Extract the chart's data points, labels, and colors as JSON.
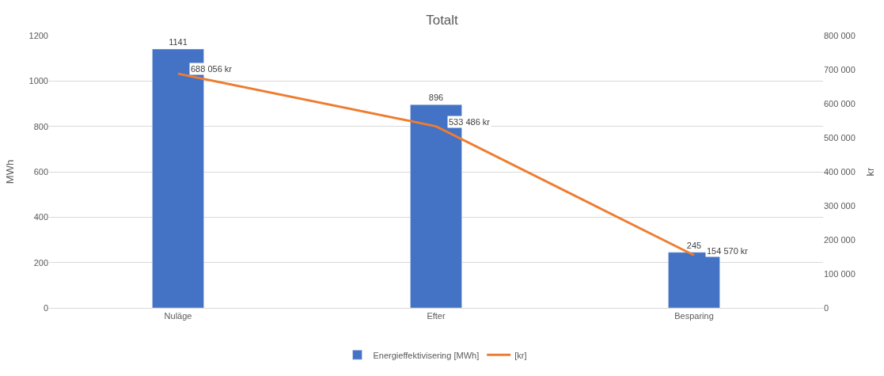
{
  "chart_data": {
    "type": "bar",
    "title": "Totalt",
    "ylabel": "MWh",
    "y2label": "kr",
    "categories": [
      "Nuläge",
      "Efter",
      "Besparing"
    ],
    "series": [
      {
        "name": "Energieffektivisering [MWh]",
        "color": "#4472c4",
        "values": [
          1141,
          896,
          245
        ],
        "value_labels": [
          "1141",
          "896",
          "245"
        ]
      },
      {
        "name": "[kr]",
        "type": "line",
        "axis": "y2",
        "color": "#ed7d31",
        "marker": "none",
        "line_style": "solid",
        "values": [
          688056,
          533486,
          154570
        ],
        "value_labels": [
          "688 056 kr",
          "533 486 kr",
          "154 570 kr"
        ]
      }
    ],
    "ylim": [
      0,
      1200
    ],
    "yticks": [
      0,
      200,
      400,
      600,
      800,
      1000,
      1200
    ],
    "y2lim": [
      0,
      800000
    ],
    "y2ticks": [
      {
        "value": 0,
        "label": "0"
      },
      {
        "value": 100000,
        "label": "100 000"
      },
      {
        "value": 200000,
        "label": "200 000"
      },
      {
        "value": 300000,
        "label": "300 000"
      },
      {
        "value": 400000,
        "label": "400 000"
      },
      {
        "value": 500000,
        "label": "500 000"
      },
      {
        "value": 600000,
        "label": "600 000"
      },
      {
        "value": 700000,
        "label": "700 000"
      },
      {
        "value": 800000,
        "label": "800 000"
      }
    ],
    "grid": "y",
    "legend": "bottom"
  }
}
